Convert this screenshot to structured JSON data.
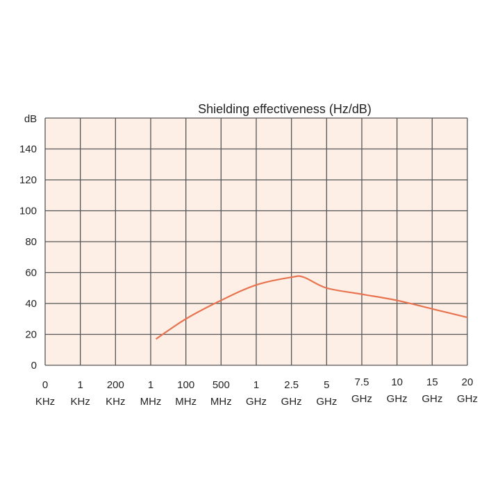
{
  "chart_data": {
    "type": "line",
    "title": "Shielding effectiveness  (Hz/dB)",
    "ylabel": "dB",
    "xlabel": "",
    "ylim": [
      0,
      160
    ],
    "yticks": [
      0,
      20,
      40,
      60,
      80,
      100,
      120,
      140
    ],
    "grid": true,
    "categories": [
      [
        "0",
        "KHz"
      ],
      [
        "1",
        "KHz"
      ],
      [
        "200",
        "KHz"
      ],
      [
        "1",
        "MHz"
      ],
      [
        "100",
        "MHz"
      ],
      [
        "500",
        "MHz"
      ],
      [
        "1",
        "GHz"
      ],
      [
        "2.5",
        "GHz"
      ],
      [
        "5",
        "GHz"
      ],
      [
        "7.5",
        "GHz"
      ],
      [
        "10",
        "GHz"
      ],
      [
        "15",
        "GHz"
      ],
      [
        "20",
        "GHz"
      ]
    ],
    "series": [
      {
        "color": "#e8734f",
        "points": [
          {
            "x": 3.15,
            "y": 17
          },
          {
            "x": 4,
            "y": 30
          },
          {
            "x": 5,
            "y": 42
          },
          {
            "x": 6,
            "y": 52
          },
          {
            "x": 7,
            "y": 57
          },
          {
            "x": 7.35,
            "y": 57
          },
          {
            "x": 8,
            "y": 50
          },
          {
            "x": 9,
            "y": 46
          },
          {
            "x": 10,
            "y": 42
          },
          {
            "x": 11,
            "y": 36.5
          },
          {
            "x": 12,
            "y": 31
          }
        ]
      }
    ],
    "colors": {
      "plot_background": "#fdeee6",
      "grid": "#555555",
      "line": "#e8734f"
    }
  }
}
